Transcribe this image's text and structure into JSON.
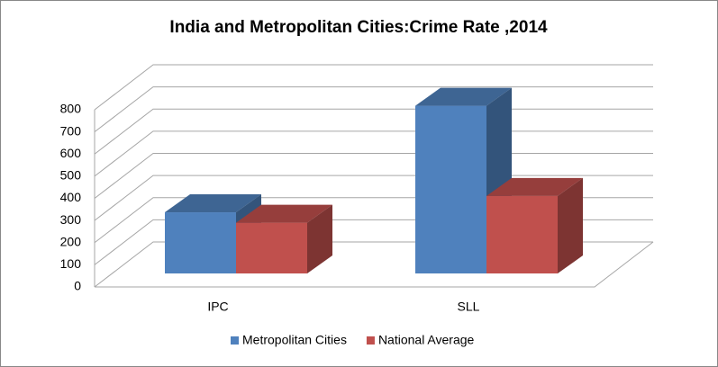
{
  "chart_data": {
    "type": "bar3d",
    "title": "India and Metropolitan Cities:Crime Rate ,2014",
    "categories": [
      "IPC",
      "SLL"
    ],
    "series": [
      {
        "name": "Metropolitan Cities",
        "color": "#4f81bd",
        "values": [
          276,
          757
        ]
      },
      {
        "name": "National Average",
        "color": "#c0504d",
        "values": [
          229,
          350
        ]
      }
    ],
    "ylim": [
      0,
      800
    ],
    "yticks": [
      0,
      100,
      200,
      300,
      400,
      500,
      600,
      700,
      800
    ],
    "grid": true,
    "legend": "bottom"
  }
}
